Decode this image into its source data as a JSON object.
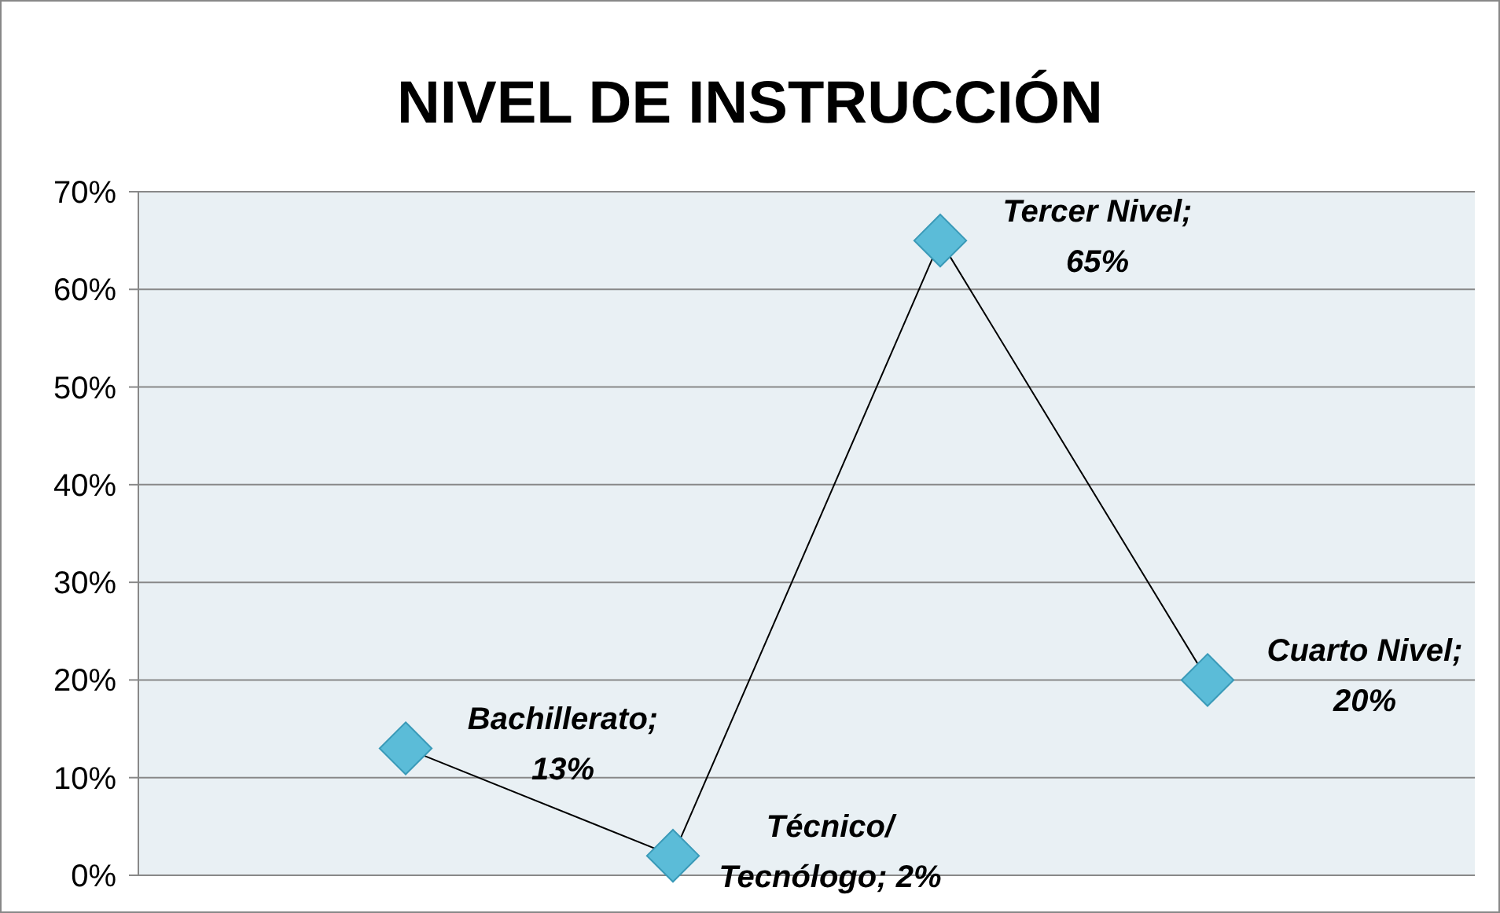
{
  "chart_data": {
    "type": "line",
    "title": "NIVEL DE INSTRUCCIÓN",
    "categories": [
      null,
      null,
      null,
      null
    ],
    "series": [
      {
        "color": "#5bbcd8",
        "values": [
          13,
          2,
          65,
          20
        ]
      }
    ],
    "value_labels": [
      "Bachillerato;\n13%",
      "Técnico/\nTecnólogo; 2%",
      "Tercer Nivel;\n65%",
      "Cuarto Nivel;\n20%"
    ],
    "ylim": [
      0,
      70
    ],
    "yticks": [
      {
        "value": 0,
        "label": "0%"
      },
      {
        "value": 10,
        "label": "10%"
      },
      {
        "value": 20,
        "label": "20%"
      },
      {
        "value": 30,
        "label": "30%"
      },
      {
        "value": 40,
        "label": "40%"
      },
      {
        "value": 50,
        "label": "50%"
      },
      {
        "value": 60,
        "label": "60%"
      },
      {
        "value": 70,
        "label": "70%"
      }
    ],
    "grid": "y",
    "tick_labels": "y",
    "marker": "diamond",
    "line_style": "solid"
  }
}
